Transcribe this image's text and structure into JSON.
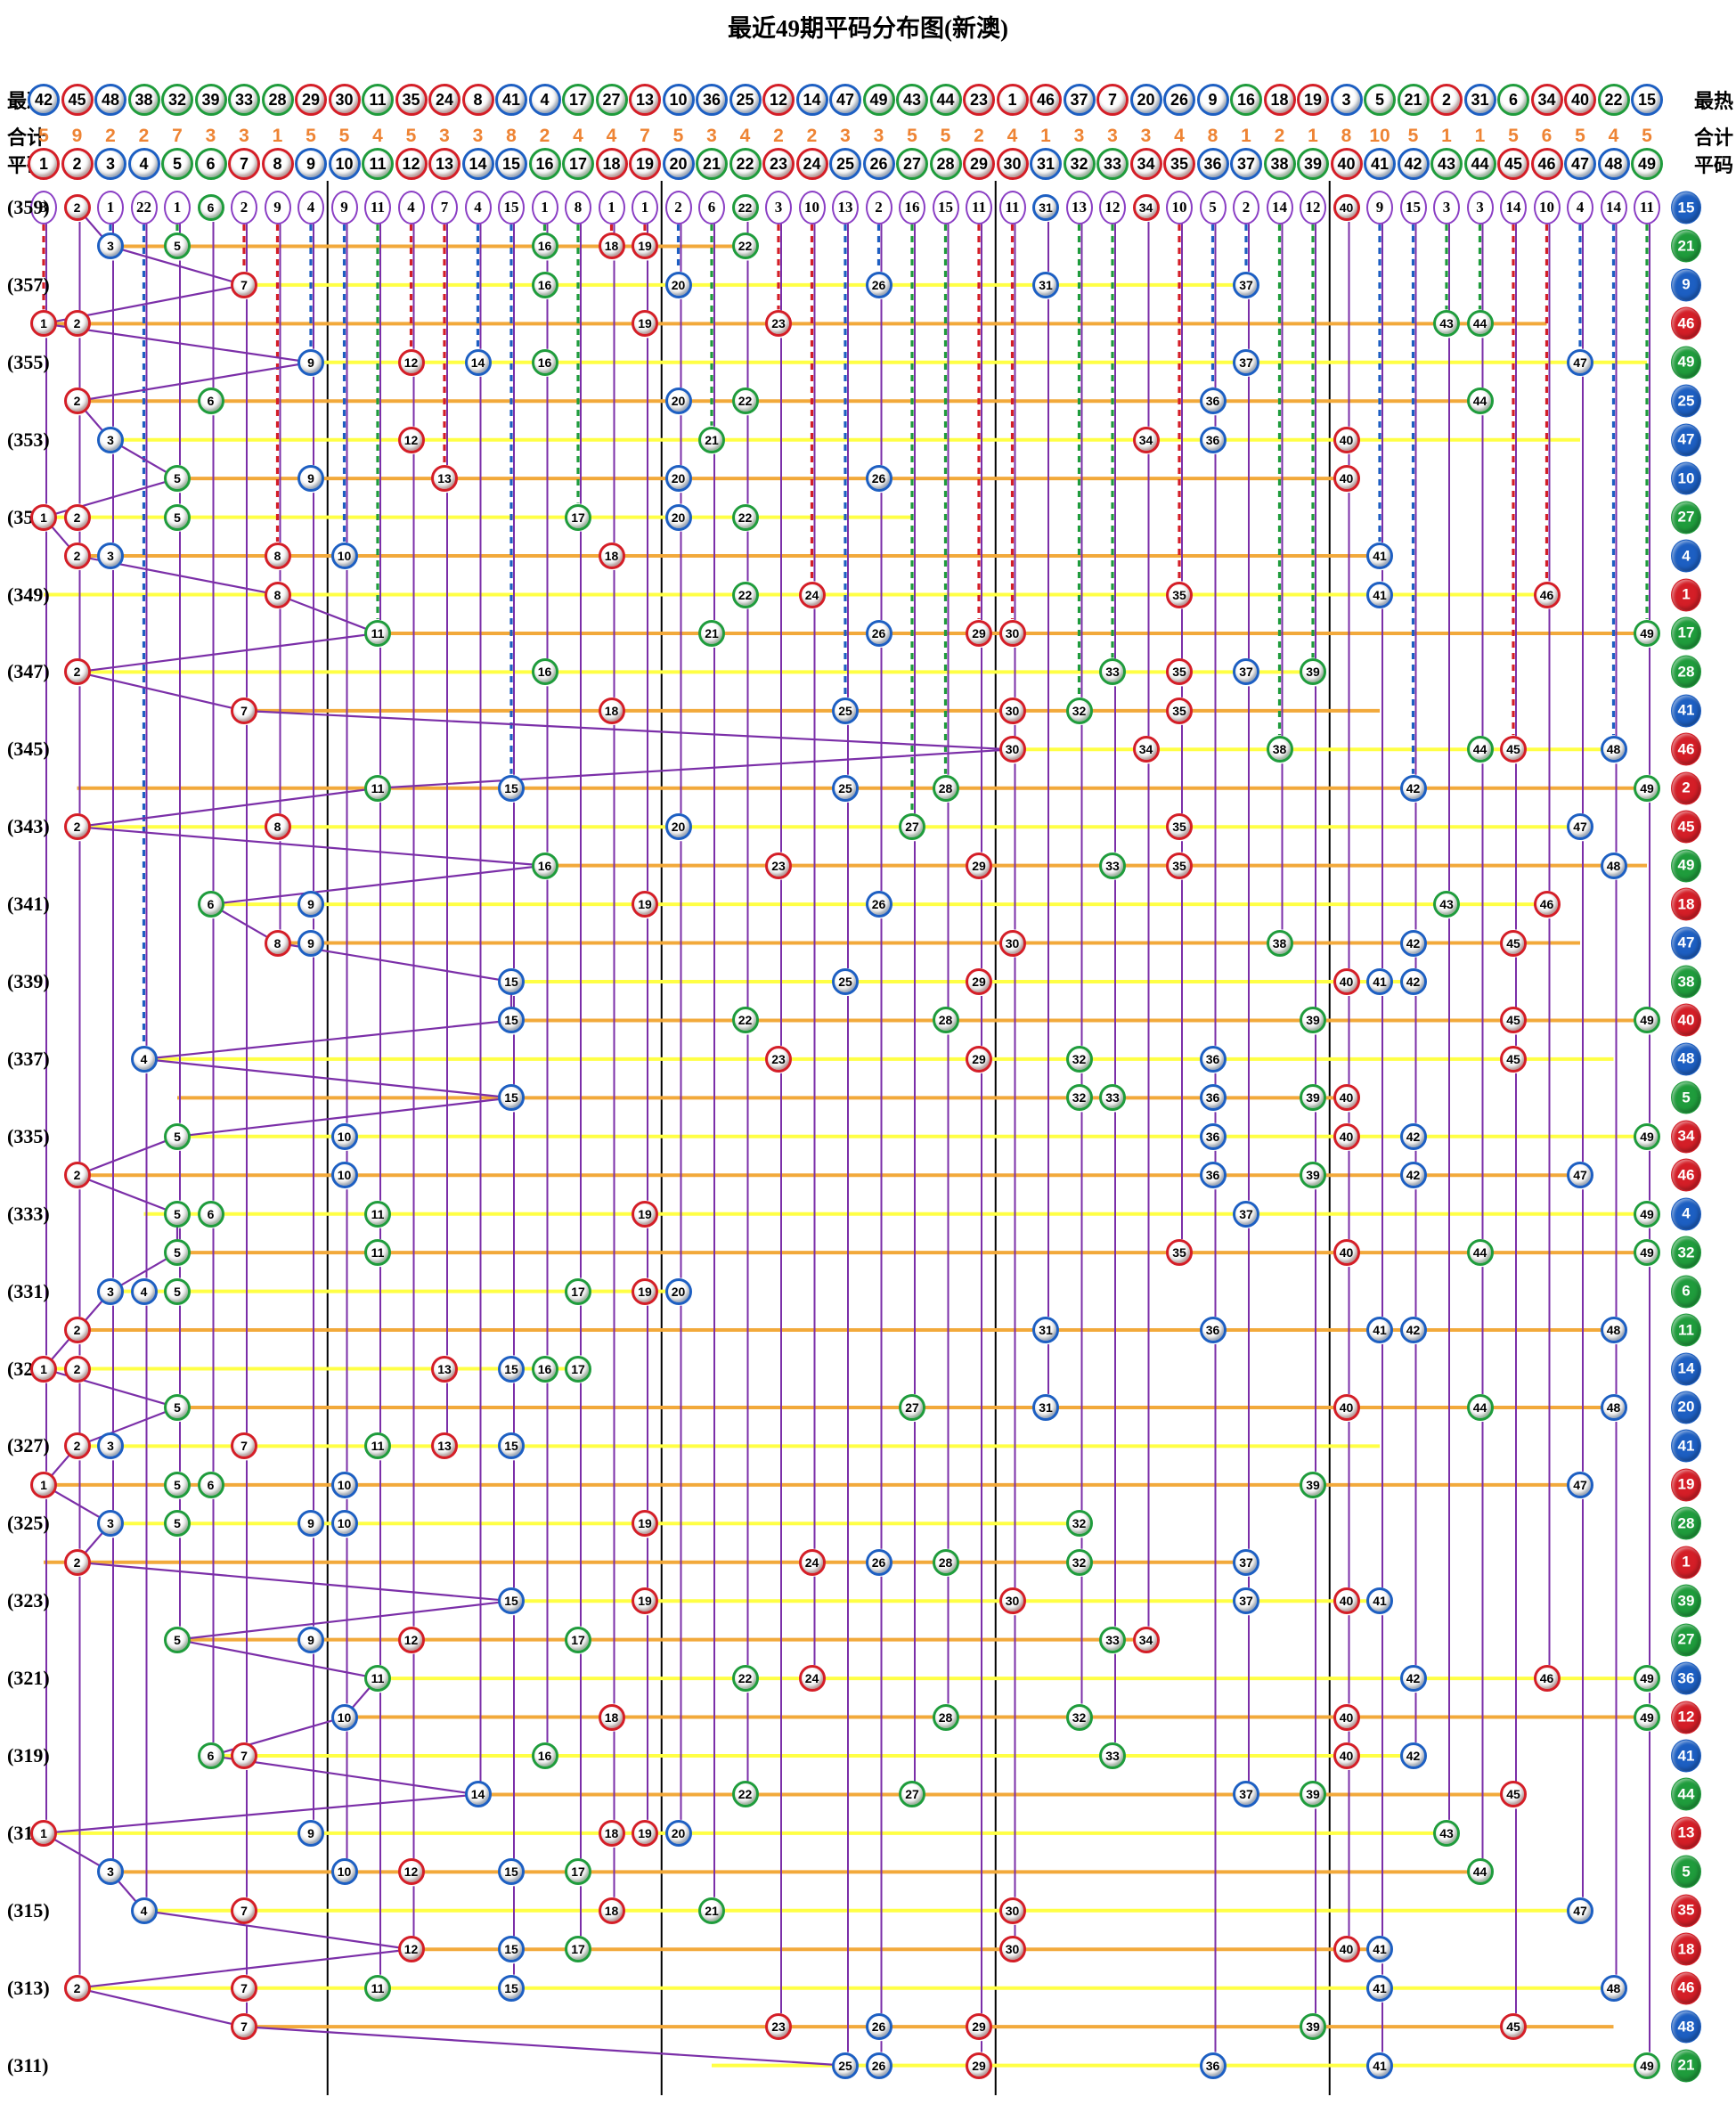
{
  "title": "最近49期平码分布图(新澳)",
  "header": {
    "coldest_label": "最冷",
    "hottest_label": "最热",
    "totals_label": "合计",
    "flats_label": "平码",
    "coldest_order": [
      42,
      45,
      48,
      38,
      32,
      39,
      33,
      28,
      29,
      30,
      11,
      35,
      24,
      8,
      41,
      4,
      17,
      27,
      13,
      10,
      36,
      25,
      12,
      14,
      47,
      49,
      43,
      44,
      23,
      1,
      46,
      37,
      7,
      20,
      26,
      9,
      16,
      18,
      19,
      3,
      5,
      21,
      2,
      31,
      6,
      34,
      40,
      22,
      15
    ],
    "totals": [
      5,
      9,
      2,
      2,
      7,
      3,
      3,
      1,
      5,
      5,
      4,
      5,
      3,
      3,
      8,
      2,
      4,
      4,
      7,
      5,
      3,
      4,
      2,
      2,
      3,
      3,
      5,
      5,
      2,
      4,
      1,
      3,
      3,
      3,
      4,
      8,
      1,
      2,
      1,
      8,
      10,
      5,
      1,
      1,
      5,
      6,
      5,
      4,
      5
    ],
    "flat_numbers": [
      1,
      2,
      3,
      4,
      5,
      6,
      7,
      8,
      9,
      10,
      11,
      12,
      13,
      14,
      15,
      16,
      17,
      18,
      19,
      20,
      21,
      22,
      23,
      24,
      25,
      26,
      27,
      28,
      29,
      30,
      31,
      32,
      33,
      34,
      35,
      36,
      37,
      38,
      39,
      40,
      41,
      42,
      43,
      44,
      45,
      46,
      47,
      48,
      49
    ]
  },
  "colors": {
    "red": "#d41e27",
    "blue": "#1d5fc2",
    "green": "#1f9c3c",
    "red_tint": "#f5bdb9",
    "blue_tint": "#bdd3f2",
    "green_tint": "#bfe9c2",
    "red_numbers": [
      1,
      2,
      7,
      8,
      12,
      13,
      18,
      19,
      23,
      24,
      29,
      30,
      34,
      35,
      40,
      45,
      46
    ],
    "blue_numbers": [
      3,
      4,
      9,
      10,
      14,
      15,
      20,
      25,
      26,
      31,
      36,
      37,
      41,
      42,
      47,
      48
    ],
    "green_numbers": [
      5,
      6,
      11,
      16,
      17,
      21,
      22,
      27,
      28,
      32,
      33,
      38,
      39,
      43,
      44,
      49
    ],
    "totals_text": "#ee8434",
    "line_yellow": "#ffff45",
    "line_orange": "#f2a93b",
    "purple": "#7b2fa8",
    "miss_circle_border": "#8a3ec4",
    "section_line": "#000000"
  },
  "chart_data": {
    "type": "scatter",
    "title": "最近49期平码分布图(新澳)",
    "x_axis": "号码 1-49 (columns = lottery numbers)",
    "y_axis": "期号 359(top) … 311(bottom), one row per draw period",
    "legend": "每行6个平码(圈内有色球)+右侧特码列; 顶行为各号码遗漏期数",
    "miss_counts": [
      3,
      0,
      1,
      22,
      1,
      0,
      2,
      9,
      4,
      9,
      11,
      4,
      7,
      4,
      15,
      1,
      8,
      1,
      1,
      2,
      6,
      0,
      3,
      10,
      13,
      2,
      16,
      15,
      11,
      11,
      0,
      13,
      12,
      0,
      10,
      5,
      2,
      14,
      12,
      0,
      9,
      15,
      3,
      3,
      14,
      10,
      4,
      14,
      11
    ],
    "periods": [
      {
        "period": 359,
        "flats": [
          2,
          6,
          22,
          31,
          34,
          40
        ],
        "special": 15
      },
      {
        "period": 358,
        "flats": [
          3,
          5,
          16,
          18,
          19,
          22
        ],
        "special": 21
      },
      {
        "period": 357,
        "flats": [
          7,
          16,
          20,
          26,
          31,
          37
        ],
        "special": 9
      },
      {
        "period": 356,
        "flats": [
          1,
          2,
          19,
          23,
          43,
          44
        ],
        "special": 46
      },
      {
        "period": 355,
        "flats": [
          9,
          12,
          14,
          16,
          37,
          47
        ],
        "special": 49
      },
      {
        "period": 354,
        "flats": [
          2,
          6,
          20,
          22,
          36,
          44
        ],
        "special": 25
      },
      {
        "period": 353,
        "flats": [
          3,
          12,
          21,
          34,
          36,
          40
        ],
        "special": 47
      },
      {
        "period": 352,
        "flats": [
          5,
          9,
          13,
          20,
          26,
          40
        ],
        "special": 10
      },
      {
        "period": 351,
        "flats": [
          1,
          2,
          5,
          17,
          20,
          22
        ],
        "special": 27
      },
      {
        "period": 350,
        "flats": [
          2,
          3,
          8,
          10,
          18,
          41
        ],
        "special": 4
      },
      {
        "period": 349,
        "flats": [
          8,
          22,
          24,
          35,
          41,
          46
        ],
        "special": 1
      },
      {
        "period": 348,
        "flats": [
          11,
          21,
          26,
          29,
          30,
          49
        ],
        "special": 17
      },
      {
        "period": 347,
        "flats": [
          2,
          16,
          33,
          35,
          37,
          39
        ],
        "special": 28
      },
      {
        "period": 346,
        "flats": [
          7,
          18,
          25,
          30,
          32,
          35
        ],
        "special": 41
      },
      {
        "period": 345,
        "flats": [
          30,
          34,
          38,
          44,
          45,
          48
        ],
        "special": 46
      },
      {
        "period": 344,
        "flats": [
          11,
          15,
          25,
          28,
          42,
          49
        ],
        "special": 2
      },
      {
        "period": 343,
        "flats": [
          2,
          8,
          20,
          27,
          35,
          47
        ],
        "special": 45
      },
      {
        "period": 342,
        "flats": [
          16,
          23,
          29,
          33,
          35,
          48
        ],
        "special": 49
      },
      {
        "period": 341,
        "flats": [
          6,
          9,
          19,
          26,
          43,
          46
        ],
        "special": 18
      },
      {
        "period": 340,
        "flats": [
          8,
          9,
          30,
          38,
          42,
          45
        ],
        "special": 47
      },
      {
        "period": 339,
        "flats": [
          15,
          25,
          29,
          40,
          41,
          42
        ],
        "special": 38
      },
      {
        "period": 338,
        "flats": [
          15,
          22,
          28,
          39,
          45,
          49
        ],
        "special": 40
      },
      {
        "period": 337,
        "flats": [
          4,
          23,
          29,
          32,
          36,
          45
        ],
        "special": 48
      },
      {
        "period": 336,
        "flats": [
          15,
          32,
          33,
          36,
          39,
          40
        ],
        "special": 5
      },
      {
        "period": 335,
        "flats": [
          5,
          10,
          36,
          40,
          42,
          49
        ],
        "special": 34
      },
      {
        "period": 334,
        "flats": [
          2,
          10,
          36,
          39,
          42,
          47
        ],
        "special": 46
      },
      {
        "period": 333,
        "flats": [
          5,
          6,
          11,
          19,
          37,
          49
        ],
        "special": 4
      },
      {
        "period": 332,
        "flats": [
          5,
          11,
          35,
          40,
          44,
          49
        ],
        "special": 32
      },
      {
        "period": 331,
        "flats": [
          3,
          4,
          5,
          17,
          19,
          20
        ],
        "special": 6
      },
      {
        "period": 330,
        "flats": [
          2,
          31,
          36,
          41,
          42,
          48
        ],
        "special": 11
      },
      {
        "period": 329,
        "flats": [
          1,
          2,
          13,
          15,
          16,
          17
        ],
        "special": 14
      },
      {
        "period": 328,
        "flats": [
          5,
          27,
          31,
          40,
          44,
          48
        ],
        "special": 20
      },
      {
        "period": 327,
        "flats": [
          2,
          3,
          7,
          11,
          13,
          15
        ],
        "special": 41
      },
      {
        "period": 326,
        "flats": [
          1,
          5,
          6,
          10,
          39,
          47
        ],
        "special": 19
      },
      {
        "period": 325,
        "flats": [
          3,
          5,
          9,
          10,
          19,
          32
        ],
        "special": 28
      },
      {
        "period": 324,
        "flats": [
          2,
          24,
          26,
          28,
          32,
          37
        ],
        "special": 1
      },
      {
        "period": 323,
        "flats": [
          15,
          19,
          30,
          37,
          40,
          41
        ],
        "special": 39
      },
      {
        "period": 322,
        "flats": [
          5,
          9,
          12,
          17,
          33,
          34
        ],
        "special": 27
      },
      {
        "period": 321,
        "flats": [
          11,
          22,
          24,
          42,
          46,
          49
        ],
        "special": 36
      },
      {
        "period": 320,
        "flats": [
          10,
          18,
          28,
          32,
          40,
          49
        ],
        "special": 12
      },
      {
        "period": 319,
        "flats": [
          6,
          7,
          16,
          33,
          40,
          42
        ],
        "special": 41
      },
      {
        "period": 318,
        "flats": [
          14,
          22,
          27,
          37,
          39,
          45
        ],
        "special": 44
      },
      {
        "period": 317,
        "flats": [
          1,
          9,
          18,
          19,
          20,
          43
        ],
        "special": 13
      },
      {
        "period": 316,
        "flats": [
          3,
          10,
          12,
          15,
          17,
          44
        ],
        "special": 5
      },
      {
        "period": 315,
        "flats": [
          4,
          7,
          18,
          21,
          30,
          47
        ],
        "special": 35
      },
      {
        "period": 314,
        "flats": [
          12,
          15,
          17,
          30,
          40,
          41
        ],
        "special": 18
      },
      {
        "period": 313,
        "flats": [
          2,
          7,
          11,
          15,
          41,
          48
        ],
        "special": 46
      },
      {
        "period": 312,
        "flats": [
          7,
          23,
          26,
          29,
          39,
          45
        ],
        "special": 48
      },
      {
        "period": 311,
        "flats": [
          25,
          26,
          29,
          36,
          41,
          49
        ],
        "special": 21
      }
    ]
  }
}
